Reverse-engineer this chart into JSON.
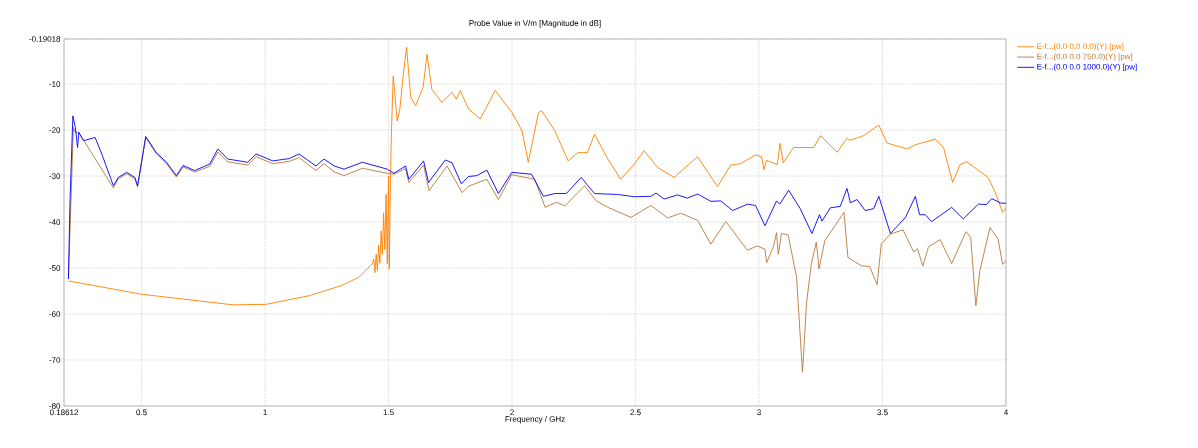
{
  "chart_data": {
    "type": "line",
    "title": "Probe Value in V/m [Magnitude in dB]",
    "xlabel": "Frequency / GHz",
    "xlim": [
      0.18612,
      4
    ],
    "ylim": [
      -80,
      -0.19018
    ],
    "xticks": [
      0.18612,
      0.5,
      1,
      1.5,
      2,
      2.5,
      3,
      3.5,
      4
    ],
    "yticks": [
      -80,
      -70,
      -60,
      -50,
      -40,
      -30,
      -20,
      -10,
      -0.19018
    ],
    "grid": true,
    "legend": "right",
    "marker": "none",
    "line_style": "solid",
    "series": [
      {
        "name": "E-f...(0.0 0.0 0.0)(Y) [pw]",
        "color": "#ff8000",
        "x": [
          0.204,
          0.5,
          0.87,
          1.004,
          1.18,
          1.31,
          1.38,
          1.434,
          1.44,
          1.445,
          1.45,
          1.455,
          1.46,
          1.465,
          1.47,
          1.475,
          1.48,
          1.485,
          1.49,
          1.495,
          1.5,
          1.503,
          1.508,
          1.512,
          1.519,
          1.535,
          1.545,
          1.56,
          1.573,
          1.59,
          1.61,
          1.64,
          1.656,
          1.675,
          1.716,
          1.757,
          1.775,
          1.79,
          1.824,
          1.871,
          1.932,
          2.0,
          2.04,
          2.066,
          2.107,
          2.12,
          2.173,
          2.227,
          2.267,
          2.305,
          2.334,
          2.388,
          2.44,
          2.495,
          2.535,
          2.589,
          2.656,
          2.751,
          2.832,
          2.886,
          2.926,
          2.986,
          3.01,
          3.02,
          3.03,
          3.074,
          3.085,
          3.098,
          3.14,
          3.222,
          3.249,
          3.316,
          3.356,
          3.37,
          3.424,
          3.485,
          3.518,
          3.599,
          3.639,
          3.713,
          3.747,
          3.784,
          3.814,
          3.841,
          3.928,
          3.962,
          3.986,
          4.0
        ],
        "values": [
          -52.8,
          -55.7,
          -58.0,
          -57.9,
          -56.0,
          -53.8,
          -52.0,
          -49.1,
          -48,
          -51,
          -47,
          -50.5,
          -45,
          -49,
          -42,
          -47,
          -38,
          -46,
          -34,
          -49,
          -30,
          -50.2,
          -29.6,
          -20.1,
          -8.2,
          -18,
          -15.8,
          -7.8,
          -2.0,
          -12.9,
          -14.7,
          -10.7,
          -3.5,
          -11.1,
          -14.0,
          -11.8,
          -13.3,
          -11.4,
          -15.4,
          -17.6,
          -11.4,
          -16.2,
          -20.1,
          -27.0,
          -16.2,
          -15.8,
          -20.1,
          -26.7,
          -24.9,
          -24.9,
          -20.9,
          -26.3,
          -30.7,
          -27.4,
          -24.5,
          -28.1,
          -30.3,
          -25.8,
          -32.3,
          -27.6,
          -27.3,
          -25.4,
          -25.8,
          -28.6,
          -26.6,
          -27.5,
          -22.9,
          -27.1,
          -23.8,
          -23.8,
          -21.2,
          -24.8,
          -21.8,
          -22.2,
          -21.2,
          -18.9,
          -22.8,
          -24.1,
          -23.1,
          -22.0,
          -23.8,
          -31.4,
          -27.5,
          -26.9,
          -30.3,
          -34.3,
          -37.9,
          -37.0
        ]
      },
      {
        "name": "E-f...(0.0 0.0 750.0)(Y) [pw]",
        "color": "#b8783c",
        "x": [
          0.204,
          0.21,
          0.224,
          0.232,
          0.241,
          0.246,
          0.265,
          0.312,
          0.339,
          0.386,
          0.406,
          0.44,
          0.473,
          0.484,
          0.517,
          0.56,
          0.601,
          0.641,
          0.668,
          0.715,
          0.776,
          0.809,
          0.849,
          0.93,
          0.964,
          1.031,
          1.098,
          1.138,
          1.206,
          1.239,
          1.28,
          1.32,
          1.394,
          1.495,
          1.522,
          1.569,
          1.582,
          1.642,
          1.664,
          1.737,
          1.798,
          1.824,
          1.898,
          1.945,
          1.999,
          2.092,
          2.134,
          2.18,
          2.214,
          2.294,
          2.341,
          2.388,
          2.482,
          2.562,
          2.63,
          2.683,
          2.751,
          2.805,
          2.866,
          2.92,
          2.953,
          2.993,
          3.024,
          3.031,
          3.058,
          3.071,
          3.078,
          3.091,
          3.118,
          3.152,
          3.176,
          3.192,
          3.212,
          3.232,
          3.243,
          3.266,
          3.344,
          3.36,
          3.414,
          3.448,
          3.478,
          3.495,
          3.532,
          3.583,
          3.626,
          3.642,
          3.663,
          3.686,
          3.733,
          3.78,
          3.838,
          3.857,
          3.878,
          3.894,
          3.935,
          3.968,
          3.986,
          4.0
        ],
        "values": [
          -52.4,
          null,
          -19.4,
          -20.5,
          null,
          -20.5,
          null,
          null,
          null,
          -32.6,
          -30.6,
          -29.5,
          -30.6,
          -32.4,
          -21.6,
          -25.2,
          -27.3,
          -30.2,
          -28.0,
          -29.1,
          -27.9,
          -24.8,
          -26.9,
          -27.6,
          -25.8,
          -27.3,
          -26.8,
          -26.0,
          -28.8,
          -27.3,
          -29.1,
          -29.9,
          -28.3,
          -29.4,
          -29.6,
          -28.4,
          -31.4,
          -27.6,
          -33.2,
          -27.8,
          -33.6,
          -32.2,
          -30.7,
          -35.1,
          -29.7,
          -30.7,
          -36.8,
          -35.7,
          -36.5,
          -32.1,
          -35.4,
          -36.8,
          -39.0,
          -36.4,
          -39.1,
          -38.1,
          -39.6,
          -44.8,
          -39.9,
          -43.8,
          -46.1,
          -45.2,
          -45.9,
          -48.8,
          -45.4,
          -42.3,
          -47.0,
          -42.5,
          -42.8,
          -52.0,
          -72.7,
          -57.8,
          -49.0,
          -44.4,
          -50.2,
          -44.1,
          -37.9,
          -47.7,
          -49.5,
          -49.7,
          -53.6,
          -44.8,
          -42.6,
          -41.7,
          -46.5,
          -45.8,
          -49.6,
          -45.4,
          -43.8,
          -49.0,
          -42.1,
          -43.3,
          -58.2,
          -50.6,
          -41.2,
          -43.7,
          -49.2,
          -48.5
        ]
      },
      {
        "name": "E-f...(0.0 0.0 1000.0)(Y) [pw]",
        "color": "#0000ff",
        "x": [
          0.204,
          0.21,
          0.222,
          0.232,
          0.241,
          0.246,
          0.265,
          0.312,
          0.339,
          0.386,
          0.406,
          0.44,
          0.473,
          0.484,
          0.517,
          0.56,
          0.601,
          0.641,
          0.668,
          0.715,
          0.776,
          0.809,
          0.849,
          0.93,
          0.964,
          1.031,
          1.098,
          1.138,
          1.206,
          1.239,
          1.28,
          1.32,
          1.394,
          1.495,
          1.522,
          1.569,
          1.582,
          1.642,
          1.662,
          1.73,
          1.757,
          1.795,
          1.824,
          1.858,
          1.898,
          1.945,
          1.999,
          2.079,
          2.127,
          2.173,
          2.22,
          2.28,
          2.334,
          2.428,
          2.495,
          2.562,
          2.583,
          2.616,
          2.67,
          2.71,
          2.751,
          2.805,
          2.845,
          2.893,
          2.953,
          2.986,
          3.024,
          3.071,
          3.084,
          3.12,
          3.167,
          3.214,
          3.245,
          3.255,
          3.289,
          3.329,
          3.356,
          3.37,
          3.397,
          3.43,
          3.464,
          3.485,
          3.532,
          3.593,
          3.633,
          3.65,
          3.673,
          3.699,
          3.78,
          3.827,
          3.888,
          3.921,
          3.942,
          3.98,
          4.0
        ],
        "values": [
          -52.4,
          -36.1,
          -16.9,
          -19.4,
          -23.8,
          -20.5,
          -22.3,
          -21.6,
          -25.2,
          -32.1,
          -30.3,
          -29.2,
          -30.3,
          -32.1,
          -21.4,
          -24.9,
          -27.0,
          -29.9,
          -27.7,
          -28.8,
          -27.4,
          -24.1,
          -26.3,
          -27.0,
          -25.2,
          -26.7,
          -26.2,
          -25.2,
          -27.8,
          -26.3,
          -27.8,
          -28.5,
          -27.0,
          -28.5,
          -29.4,
          -27.8,
          -30.7,
          -26.7,
          -31.4,
          -26.5,
          -27.1,
          -31.7,
          -30.1,
          -29.9,
          -28.7,
          -33.8,
          -29.2,
          -29.6,
          -34.4,
          -33.8,
          -33.8,
          -30.3,
          -33.8,
          -34.0,
          -34.5,
          -34.4,
          -33.7,
          -35.0,
          -34.1,
          -34.8,
          -33.9,
          -35.5,
          -35.4,
          -37.5,
          -36.1,
          -36.4,
          -40.8,
          -35.4,
          -36.1,
          -33.1,
          -37.1,
          -42.5,
          -38.4,
          -39.8,
          -36.9,
          -36.6,
          -32.7,
          -35.8,
          -35.1,
          -37.5,
          -37.1,
          -34.4,
          -42.5,
          -39.0,
          -34.4,
          -38.4,
          -38.4,
          -39.9,
          -36.8,
          -39.3,
          -36.1,
          -36.2,
          -34.9,
          -35.9,
          -35.9
        ]
      }
    ]
  }
}
